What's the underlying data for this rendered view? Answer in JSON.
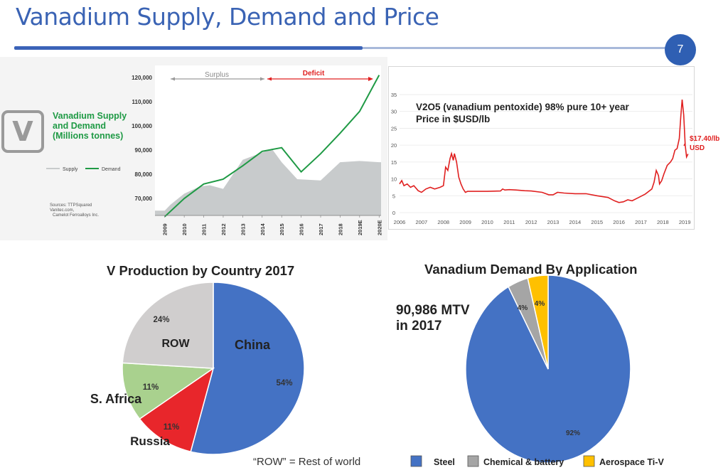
{
  "slide": {
    "title": "Vanadium Supply, Demand and Price",
    "page_number": "7"
  },
  "colors": {
    "accent_blue": "#3b63b8",
    "supply_gray": "#c8cbcc",
    "demand_green": "#1f9a45",
    "price_red": "#e02020",
    "deficit_red": "#e02020",
    "pie_blue": "#4472c4",
    "pie_red": "#e8262b",
    "pie_green": "#a9d18e",
    "pie_gray": "#d0cece",
    "pie_yellow": "#ffc000"
  },
  "chart_data": [
    {
      "type": "area",
      "title": "Vanadium Supply and Demand (Millions tonnes)",
      "logo_letter": "V",
      "phases": {
        "surplus": "Surplus",
        "deficit": "Deficit"
      },
      "sources": [
        "Sources: TTPSquared",
        "Vanitec.com,",
        "Camelot Ferroalloys Inc."
      ],
      "x": [
        "2009",
        "2010",
        "2011",
        "2012",
        "2013",
        "2014",
        "2015",
        "2016",
        "2017",
        "2018",
        "2019E",
        "2020E"
      ],
      "ylim": [
        63000,
        125000
      ],
      "y_ticks": [
        70000,
        80000,
        90000,
        100000,
        110000,
        120000
      ],
      "y_tick_labels": [
        "70,000",
        "80,000",
        "90,000",
        "100,000",
        "110,000",
        "120,000"
      ],
      "series": [
        {
          "name": "Supply",
          "type": "area",
          "points": [
            [
              2008.5,
              65000
            ],
            [
              2009.0,
              65000
            ],
            [
              2009.3,
              67500
            ],
            [
              2010.0,
              72000
            ],
            [
              2010.8,
              75000
            ],
            [
              2011.3,
              75500
            ],
            [
              2012.0,
              74000
            ],
            [
              2013.0,
              86000
            ],
            [
              2014.0,
              89000
            ],
            [
              2014.5,
              90500
            ],
            [
              2015.0,
              85000
            ],
            [
              2015.8,
              78000
            ],
            [
              2017.0,
              77500
            ],
            [
              2018.0,
              85000
            ],
            [
              2019.0,
              85500
            ],
            [
              2020.0,
              85000
            ]
          ]
        },
        {
          "name": "Demand",
          "type": "line",
          "points": [
            [
              2009.0,
              62500
            ],
            [
              2010.0,
              70000
            ],
            [
              2011.0,
              76000
            ],
            [
              2012.0,
              78000
            ],
            [
              2013.0,
              83500
            ],
            [
              2014.0,
              89500
            ],
            [
              2015.0,
              91000
            ],
            [
              2016.0,
              81000
            ],
            [
              2017.0,
              88500
            ],
            [
              2018.0,
              97000
            ],
            [
              2019.0,
              106000
            ],
            [
              2020.0,
              121000
            ]
          ]
        }
      ],
      "legend": [
        "Supply",
        "Demand"
      ]
    },
    {
      "type": "line",
      "title": "V2O5 (vanadium pentoxide) 98% pure 10+ year Price in $USD/lb",
      "x_ticks": [
        "2006",
        "2007",
        "2008",
        "2009",
        "2010",
        "2011",
        "2012",
        "2013",
        "2014",
        "2015",
        "2016",
        "2017",
        "2018",
        "2019"
      ],
      "xlim": [
        2006,
        2019.35
      ],
      "ylim": [
        0,
        35
      ],
      "y_ticks": [
        0,
        5,
        10,
        15,
        20,
        25,
        30,
        35
      ],
      "annotation": "$17.40/lb USD",
      "series": [
        {
          "name": "V2O5 price",
          "points": [
            [
              2006.0,
              8.5
            ],
            [
              2006.1,
              9.5
            ],
            [
              2006.2,
              8.0
            ],
            [
              2006.35,
              8.5
            ],
            [
              2006.5,
              7.5
            ],
            [
              2006.65,
              8.0
            ],
            [
              2006.85,
              6.5
            ],
            [
              2007.0,
              6.0
            ],
            [
              2007.2,
              7.0
            ],
            [
              2007.4,
              7.5
            ],
            [
              2007.6,
              7.0
            ],
            [
              2007.85,
              7.5
            ],
            [
              2008.0,
              8.0
            ],
            [
              2008.1,
              13.5
            ],
            [
              2008.2,
              12.5
            ],
            [
              2008.3,
              16.0
            ],
            [
              2008.37,
              17.5
            ],
            [
              2008.45,
              15.5
            ],
            [
              2008.5,
              17.5
            ],
            [
              2008.6,
              15.0
            ],
            [
              2008.7,
              10.5
            ],
            [
              2008.8,
              8.5
            ],
            [
              2008.9,
              7.0
            ],
            [
              2009.0,
              6.0
            ],
            [
              2009.1,
              6.3
            ],
            [
              2009.5,
              6.3
            ],
            [
              2010.0,
              6.3
            ],
            [
              2010.6,
              6.4
            ],
            [
              2010.7,
              7.0
            ],
            [
              2010.8,
              6.7
            ],
            [
              2011.0,
              6.8
            ],
            [
              2011.3,
              6.7
            ],
            [
              2011.7,
              6.5
            ],
            [
              2012.0,
              6.4
            ],
            [
              2012.5,
              6.0
            ],
            [
              2012.8,
              5.3
            ],
            [
              2013.0,
              5.3
            ],
            [
              2013.2,
              6.0
            ],
            [
              2013.5,
              5.8
            ],
            [
              2014.0,
              5.6
            ],
            [
              2014.5,
              5.6
            ],
            [
              2015.0,
              5.0
            ],
            [
              2015.5,
              4.5
            ],
            [
              2015.8,
              3.5
            ],
            [
              2016.0,
              3.0
            ],
            [
              2016.2,
              3.2
            ],
            [
              2016.4,
              3.8
            ],
            [
              2016.6,
              3.5
            ],
            [
              2016.9,
              4.5
            ],
            [
              2017.2,
              5.5
            ],
            [
              2017.5,
              7.0
            ],
            [
              2017.6,
              9.0
            ],
            [
              2017.7,
              12.5
            ],
            [
              2017.8,
              11.0
            ],
            [
              2017.85,
              8.5
            ],
            [
              2017.95,
              9.5
            ],
            [
              2018.05,
              11.5
            ],
            [
              2018.2,
              14.0
            ],
            [
              2018.35,
              15.0
            ],
            [
              2018.45,
              16.0
            ],
            [
              2018.55,
              18.5
            ],
            [
              2018.65,
              19.0
            ],
            [
              2018.75,
              22.0
            ],
            [
              2018.82,
              28.5
            ],
            [
              2018.88,
              33.5
            ],
            [
              2018.95,
              29.0
            ],
            [
              2019.02,
              20.0
            ],
            [
              2019.08,
              16.5
            ],
            [
              2019.15,
              17.4
            ]
          ]
        }
      ]
    },
    {
      "type": "pie",
      "title": "V Production by Country 2017",
      "footnote": "“ROW” = Rest of world",
      "slices": [
        {
          "label": "China",
          "value": 54,
          "pct_label": "54%",
          "color": "#4472c4"
        },
        {
          "label": "Russia",
          "value": 11,
          "pct_label": "11%",
          "color": "#e8262b"
        },
        {
          "label": "S. Africa",
          "value": 11,
          "pct_label": "11%",
          "color": "#a9d18e"
        },
        {
          "label": "ROW",
          "value": 24,
          "pct_label": "24%",
          "color": "#d0cece"
        }
      ]
    },
    {
      "type": "pie",
      "title": "Vanadium Demand By Application",
      "total_label": [
        "90,986 MTV",
        "in 2017"
      ],
      "slices": [
        {
          "label": "Steel",
          "value": 92,
          "pct_label": "92%",
          "color": "#4472c4"
        },
        {
          "label": "Chemical & battery",
          "value": 4,
          "pct_label": "4%",
          "color": "#a5a5a5"
        },
        {
          "label": "Aerospace Ti-V",
          "value": 4,
          "pct_label": "4%",
          "color": "#ffc000"
        }
      ],
      "legend": [
        "Steel",
        "Chemical & battery",
        "Aerospace Ti-V"
      ]
    }
  ]
}
